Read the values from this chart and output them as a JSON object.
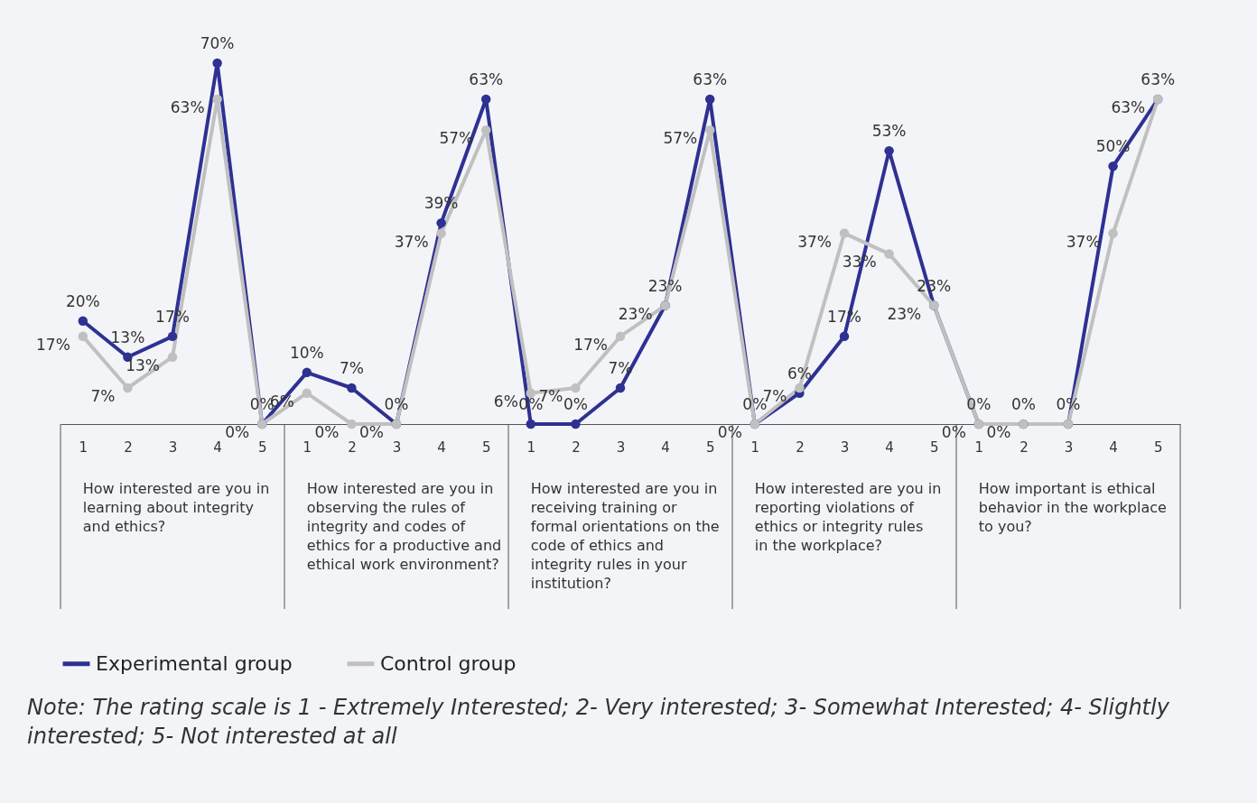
{
  "chart_data": {
    "type": "line",
    "categories": [
      "1",
      "2",
      "3",
      "4",
      "5",
      "1",
      "2",
      "3",
      "4",
      "5",
      "1",
      "2",
      "3",
      "4",
      "5",
      "1",
      "2",
      "3",
      "4",
      "5",
      "1",
      "2",
      "3",
      "4",
      "5"
    ],
    "series": [
      {
        "name": "Experimental group",
        "color": "#2e3192",
        "values": [
          20,
          13,
          17,
          70,
          0,
          10,
          7,
          0,
          39,
          63,
          0,
          0,
          7,
          23,
          63,
          0,
          6,
          17,
          53,
          23,
          0,
          0,
          0,
          50,
          63
        ],
        "value_labels": [
          "20%",
          "13%",
          "17%",
          "70%",
          "0%",
          "10%",
          "7%",
          "0%",
          "39%",
          "63%",
          "0%",
          "0%",
          "7%",
          "23%",
          "63%",
          "0%",
          "6%",
          "17%",
          "53%",
          "23%",
          "0%",
          "0%",
          "0%",
          "50%",
          "63%"
        ]
      },
      {
        "name": "Control group",
        "color": "#c0c0c0",
        "values": [
          17,
          7,
          13,
          63,
          0,
          6,
          0,
          0,
          37,
          57,
          6,
          7,
          17,
          23,
          57,
          0,
          7,
          37,
          33,
          23,
          0,
          0,
          0,
          37,
          63
        ],
        "value_labels": [
          "17%",
          "7%",
          "13%",
          "63%",
          "0%",
          "6%",
          "0%",
          "0%",
          "37%",
          "57%",
          "6%",
          "7%",
          "17%",
          "23%",
          "57%",
          "0%",
          "7%",
          "37%",
          "33%",
          "23%",
          "0%",
          "0%",
          null,
          "37%",
          "63%"
        ]
      }
    ],
    "marker": "circle",
    "legend": "bottom",
    "tick_labels": "x",
    "grid": false,
    "annotations": [
      "How interested are you in learning about integrity and ethics?",
      "How interested are you in observing the rules of integrity and codes of ethics for a productive and ethical work environment?",
      "How interested are you in receiving training or formal orientations on the code of ethics and integrity rules in your institution?",
      "How interested are you in reporting violations of ethics or integrity rules in the workplace?",
      "How important is ethical behavior in the workplace to you?",
      "Note: The rating scale is 1 - Extremely Interested; 2- Very interested; 3- Somewhat Interested; 4- Slightly interested; 5- Not interested at all"
    ]
  }
}
